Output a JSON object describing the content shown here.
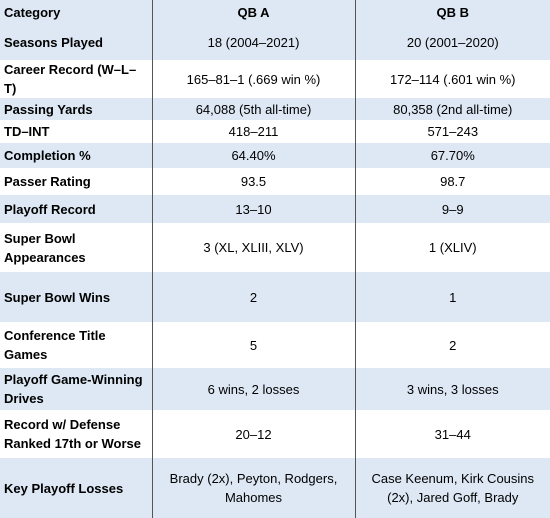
{
  "table": {
    "header": [
      "Category",
      "QB A",
      "QB B"
    ],
    "rows": [
      [
        "Seasons Played",
        "18 (2004–2021)",
        "20 (2001–2020)"
      ],
      [
        "Career Record (W–L–T)",
        "165–81–1 (.669 win %)",
        "172–114 (.601 win %)"
      ],
      [
        "Passing Yards",
        "64,088 (5th all-time)",
        "80,358 (2nd all-time)"
      ],
      [
        "TD–INT",
        "418–211",
        "571–243"
      ],
      [
        "Completion %",
        "64.40%",
        "67.70%"
      ],
      [
        "Passer Rating",
        "93.5",
        "98.7"
      ],
      [
        "Playoff Record",
        "13–10",
        "9–9"
      ],
      [
        "Super Bowl Appearances",
        "3 (XL, XLIII, XLV)",
        "1 (XLIV)"
      ],
      [
        "Super Bowl Wins",
        "2",
        "1"
      ],
      [
        "Conference Title Games",
        "5",
        "2"
      ],
      [
        "Playoff Game-Winning Drives",
        "6 wins, 2 losses",
        "3 wins, 3 losses"
      ],
      [
        "Record w/ Defense Ranked 17th or Worse",
        "20–12",
        "31–44"
      ],
      [
        "Key Playoff Losses",
        "Brady (2x), Peyton, Rodgers, Mahomes",
        "Case Keenum, Kirk Cousins (2x), Jared Goff, Brady"
      ]
    ]
  }
}
